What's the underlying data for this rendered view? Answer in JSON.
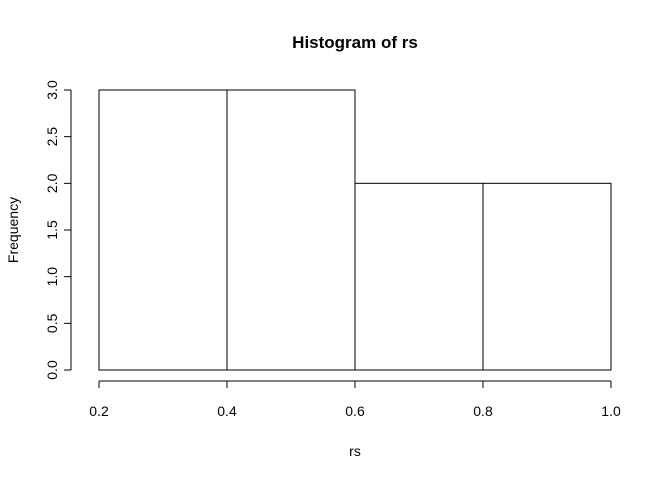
{
  "chart_data": {
    "type": "bar",
    "title": "Histogram of rs",
    "xlabel": "rs",
    "ylabel": "Frequency",
    "bins": [
      {
        "start": 0.2,
        "end": 0.4,
        "count": 3
      },
      {
        "start": 0.4,
        "end": 0.6,
        "count": 3
      },
      {
        "start": 0.6,
        "end": 0.8,
        "count": 2
      },
      {
        "start": 0.8,
        "end": 1.0,
        "count": 2
      }
    ],
    "xlim": [
      0.2,
      1.0
    ],
    "ylim": [
      0,
      3
    ],
    "x_ticks": [
      {
        "value": 0.2,
        "label": "0.2"
      },
      {
        "value": 0.4,
        "label": "0.4"
      },
      {
        "value": 0.6,
        "label": "0.6"
      },
      {
        "value": 0.8,
        "label": "0.8"
      },
      {
        "value": 1.0,
        "label": "1.0"
      }
    ],
    "y_ticks": [
      {
        "value": 0.0,
        "label": "0.0"
      },
      {
        "value": 0.5,
        "label": "0.5"
      },
      {
        "value": 1.0,
        "label": "1.0"
      },
      {
        "value": 1.5,
        "label": "1.5"
      },
      {
        "value": 2.0,
        "label": "2.0"
      },
      {
        "value": 2.5,
        "label": "2.5"
      },
      {
        "value": 3.0,
        "label": "3.0"
      }
    ],
    "bar_fill": "#ffffff",
    "bar_stroke": "#000000",
    "grid": false,
    "legend": false
  }
}
